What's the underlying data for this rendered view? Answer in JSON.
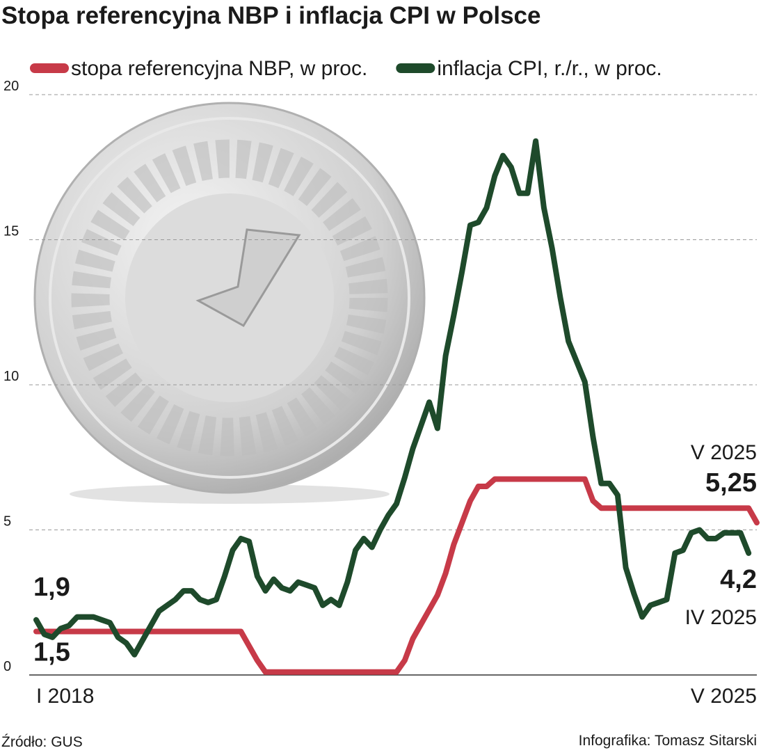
{
  "chart_data": {
    "type": "line",
    "title": "Stopa referencyjna NBP i inflacja CPI w Polsce",
    "categories": [
      "I 2018",
      null,
      null,
      null,
      null,
      null,
      null,
      null,
      null,
      null,
      null,
      null,
      null,
      null,
      null,
      null,
      null,
      null,
      null,
      null,
      null,
      null,
      null,
      null,
      null,
      null,
      null,
      null,
      null,
      null,
      null,
      null,
      null,
      null,
      null,
      null,
      null,
      null,
      null,
      null,
      null,
      null,
      null,
      null,
      null,
      null,
      null,
      null,
      null,
      null,
      null,
      null,
      null,
      null,
      null,
      null,
      null,
      null,
      null,
      null,
      null,
      null,
      null,
      null,
      null,
      null,
      null,
      null,
      null,
      null,
      null,
      null,
      null,
      null,
      null,
      null,
      null,
      null,
      null,
      null,
      null,
      null,
      null,
      null,
      null,
      null,
      null,
      null,
      "V 2025"
    ],
    "series": [
      {
        "name": "stopa referencyjna NBP, w proc.",
        "color": "#c73a48",
        "values": [
          1.5,
          1.5,
          1.5,
          1.5,
          1.5,
          1.5,
          1.5,
          1.5,
          1.5,
          1.5,
          1.5,
          1.5,
          1.5,
          1.5,
          1.5,
          1.5,
          1.5,
          1.5,
          1.5,
          1.5,
          1.5,
          1.5,
          1.5,
          1.5,
          1.5,
          1.5,
          1.0,
          0.5,
          0.1,
          0.1,
          0.1,
          0.1,
          0.1,
          0.1,
          0.1,
          0.1,
          0.1,
          0.1,
          0.1,
          0.1,
          0.1,
          0.1,
          0.1,
          0.1,
          0.1,
          0.5,
          1.25,
          1.75,
          2.25,
          2.75,
          3.5,
          4.5,
          5.25,
          6.0,
          6.5,
          6.5,
          6.75,
          6.75,
          6.75,
          6.75,
          6.75,
          6.75,
          6.75,
          6.75,
          6.75,
          6.75,
          6.75,
          6.75,
          6.0,
          5.75,
          5.75,
          5.75,
          5.75,
          5.75,
          5.75,
          5.75,
          5.75,
          5.75,
          5.75,
          5.75,
          5.75,
          5.75,
          5.75,
          5.75,
          5.75,
          5.75,
          5.75,
          5.75,
          5.25
        ],
        "value_labels": [
          "1,5",
          null,
          null,
          null,
          null,
          null,
          null,
          null,
          null,
          null,
          null,
          null,
          null,
          null,
          null,
          null,
          null,
          null,
          null,
          null,
          null,
          null,
          null,
          null,
          null,
          null,
          null,
          null,
          null,
          null,
          null,
          null,
          null,
          null,
          null,
          null,
          null,
          null,
          null,
          null,
          null,
          null,
          null,
          null,
          null,
          null,
          null,
          null,
          null,
          null,
          null,
          null,
          null,
          null,
          null,
          null,
          null,
          null,
          null,
          null,
          null,
          null,
          null,
          null,
          null,
          null,
          null,
          null,
          null,
          null,
          null,
          null,
          null,
          null,
          null,
          null,
          null,
          null,
          null,
          null,
          null,
          null,
          null,
          null,
          null,
          null,
          null,
          null,
          "5,25"
        ]
      },
      {
        "name": "inflacja CPI, r./r., w proc.",
        "color": "#1e4a2b",
        "values": [
          1.9,
          1.4,
          1.3,
          1.6,
          1.7,
          2.0,
          2.0,
          2.0,
          1.9,
          1.8,
          1.3,
          1.1,
          0.7,
          1.2,
          1.7,
          2.2,
          2.4,
          2.6,
          2.9,
          2.9,
          2.6,
          2.5,
          2.6,
          3.4,
          4.3,
          4.7,
          4.6,
          3.4,
          2.9,
          3.3,
          3.0,
          2.9,
          3.2,
          3.1,
          3.0,
          2.4,
          2.6,
          2.4,
          3.2,
          4.3,
          4.7,
          4.4,
          5.0,
          5.5,
          5.9,
          6.8,
          7.8,
          8.6,
          9.4,
          8.5,
          11.0,
          12.4,
          13.9,
          15.5,
          15.6,
          16.1,
          17.2,
          17.9,
          17.5,
          16.6,
          16.6,
          18.4,
          16.1,
          14.7,
          13.0,
          11.5,
          10.8,
          10.1,
          8.2,
          6.6,
          6.6,
          6.2,
          3.7,
          2.8,
          2.0,
          2.4,
          2.5,
          2.6,
          4.2,
          4.3,
          4.9,
          5.0,
          4.7,
          4.7,
          4.9,
          4.9,
          4.9,
          4.2,
          null
        ],
        "value_labels": [
          "1,9",
          null,
          null,
          null,
          null,
          null,
          null,
          null,
          null,
          null,
          null,
          null,
          null,
          null,
          null,
          null,
          null,
          null,
          null,
          null,
          null,
          null,
          null,
          null,
          null,
          null,
          null,
          null,
          null,
          null,
          null,
          null,
          null,
          null,
          null,
          null,
          null,
          null,
          null,
          null,
          null,
          null,
          null,
          null,
          null,
          null,
          null,
          null,
          null,
          null,
          null,
          null,
          null,
          null,
          null,
          null,
          null,
          null,
          null,
          null,
          null,
          null,
          null,
          null,
          null,
          null,
          null,
          null,
          null,
          null,
          null,
          null,
          null,
          null,
          null,
          null,
          null,
          null,
          null,
          null,
          null,
          null,
          null,
          null,
          null,
          null,
          null,
          "4,2",
          null
        ]
      }
    ],
    "annotations": [
      "V 2025",
      "IV 2025"
    ],
    "ylim": [
      0,
      20
    ],
    "yticks": [
      0,
      5,
      10,
      15,
      20
    ],
    "grid": true,
    "source": "Źródło: GUS",
    "credit": "Infografika: Tomasz Sitarski"
  }
}
